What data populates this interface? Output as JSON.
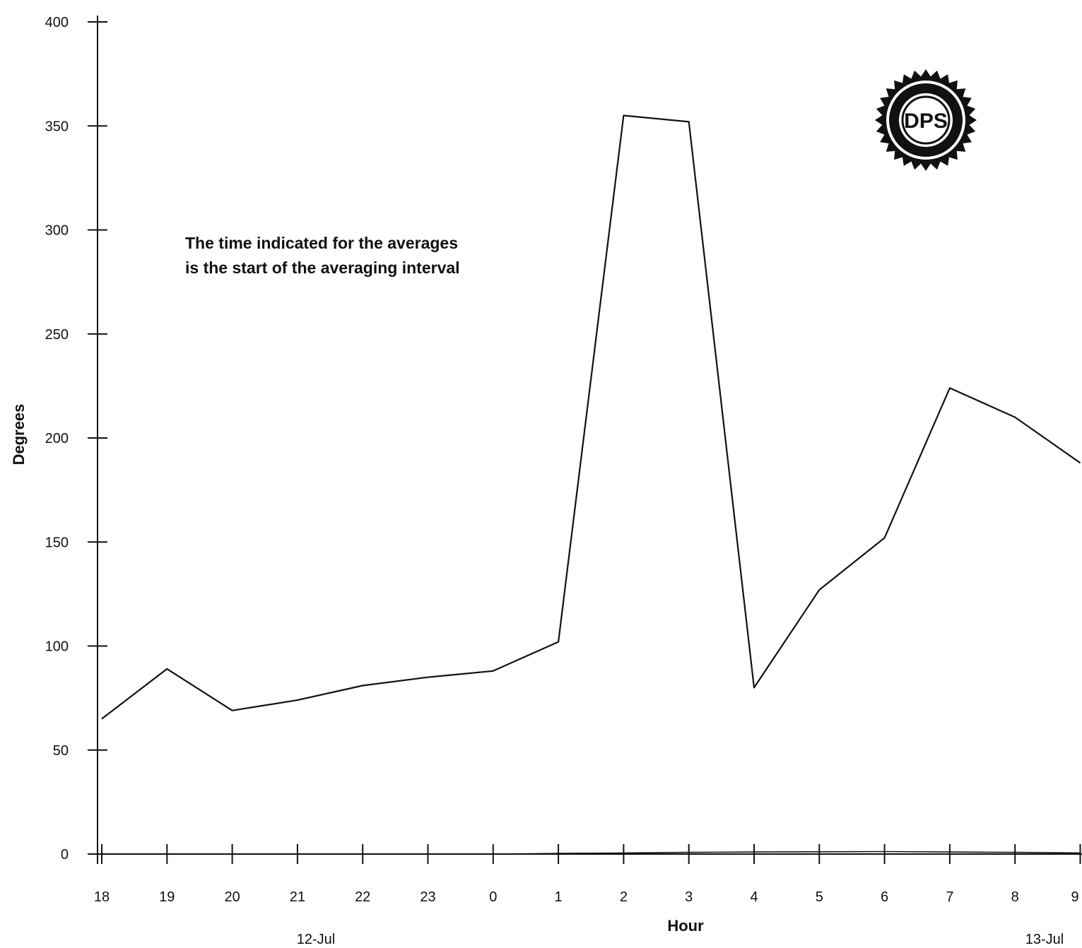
{
  "chart_data": {
    "type": "line",
    "title": "",
    "xlabel": "Hour",
    "ylabel": "Degrees",
    "categories": [
      "18",
      "19",
      "20",
      "21",
      "22",
      "23",
      "0",
      "1",
      "2",
      "3",
      "4",
      "5",
      "6",
      "7",
      "8",
      "9"
    ],
    "series": [
      {
        "values": [
          65,
          89,
          69,
          74,
          81,
          85,
          88,
          102,
          355,
          352,
          80,
          127,
          152,
          224,
          210,
          188
        ]
      },
      {
        "values": [
          0,
          0,
          0,
          0,
          0,
          0,
          0,
          0.3,
          0.5,
          0.8,
          1.0,
          1.1,
          1.2,
          1.0,
          0.8,
          0.5
        ]
      }
    ],
    "yticks": [
      "0",
      "50",
      "100",
      "150",
      "200",
      "250",
      "300",
      "350",
      "400"
    ],
    "ylim": [
      0,
      400
    ],
    "date_labels": {
      "start": "12-Jul",
      "end": "13-Jul"
    },
    "annotation": [
      "The time indicated for the averages",
      "is the start of the averaging interval"
    ],
    "grid": false,
    "colors": {
      "line": "#111111",
      "axis": "#111111"
    }
  },
  "logo": {
    "text": "DPS",
    "icon": "dps-seal-logo"
  }
}
